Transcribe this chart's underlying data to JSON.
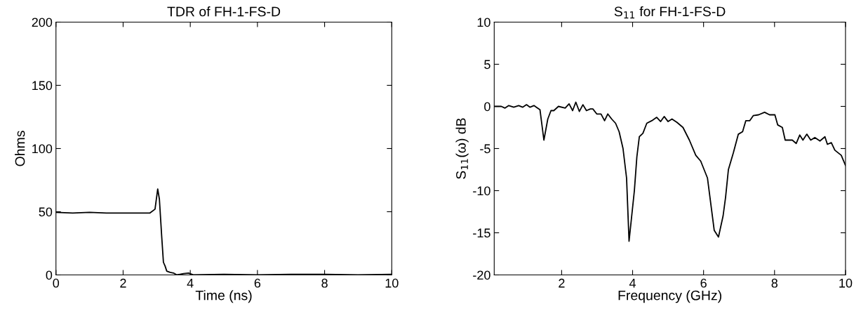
{
  "chart_data": [
    {
      "type": "line",
      "title": "TDR of FH-1-FS-D",
      "xlabel": "Time (ns)",
      "ylabel": "Ohms",
      "xlim": [
        0,
        10
      ],
      "xticks": [
        0,
        2,
        4,
        6,
        8,
        10
      ],
      "ylim": [
        0,
        200
      ],
      "yticks": [
        0,
        50,
        100,
        150,
        200
      ],
      "grid": false,
      "legend": false,
      "series": [
        {
          "color": "#000000",
          "x": [
            0,
            0.5,
            1,
            1.5,
            2,
            2.5,
            2.8,
            2.95,
            3.03,
            3.08,
            3.15,
            3.2,
            3.25,
            3.3,
            3.4,
            3.5,
            3.6,
            3.8,
            3.95,
            4.1,
            5,
            6,
            7,
            8,
            9,
            10
          ],
          "values": [
            49.5,
            49,
            49.5,
            49,
            49,
            49,
            49,
            52,
            68,
            60,
            30,
            10,
            7,
            3,
            2,
            1.5,
            0,
            1,
            1.5,
            0,
            0.5,
            0,
            0.5,
            0.5,
            0,
            0.5
          ]
        }
      ]
    },
    {
      "type": "line",
      "title": "S$_{11}$ for FH-1-FS-D",
      "xlabel": "Frequency (GHz)",
      "ylabel": "S$_{11}$(ω) dB",
      "xlim": [
        0.1,
        10
      ],
      "xticks": [
        2,
        4,
        6,
        8,
        10
      ],
      "ylim": [
        -20,
        10
      ],
      "yticks": [
        -20,
        -15,
        -10,
        -5,
        0,
        5,
        10
      ],
      "grid": false,
      "legend": false,
      "series": [
        {
          "color": "#000000",
          "x": [
            0.1,
            0.3,
            0.4,
            0.51,
            0.65,
            0.79,
            0.9,
            1.01,
            1.11,
            1.22,
            1.39,
            1.5,
            1.61,
            1.7,
            1.78,
            1.91,
            2.1,
            2.21,
            2.31,
            2.4,
            2.5,
            2.6,
            2.7,
            2.81,
            2.88,
            2.99,
            3.11,
            3.21,
            3.3,
            3.41,
            3.52,
            3.62,
            3.73,
            3.83,
            3.9,
            4.05,
            4.12,
            4.19,
            4.29,
            4.4,
            4.54,
            4.68,
            4.79,
            4.89,
            5.0,
            5.11,
            5.25,
            5.42,
            5.6,
            5.78,
            5.92,
            6.11,
            6.3,
            6.42,
            6.55,
            6.62,
            6.7,
            6.84,
            6.98,
            7.1,
            7.19,
            7.3,
            7.4,
            7.55,
            7.72,
            7.86,
            8.01,
            8.09,
            8.22,
            8.3,
            8.5,
            8.61,
            8.71,
            8.8,
            8.91,
            9.02,
            9.14,
            9.28,
            9.42,
            9.49,
            9.6,
            9.7,
            9.88,
            10.0
          ],
          "values": [
            0,
            0,
            -0.2,
            0.1,
            -0.1,
            0.1,
            -0.1,
            0.2,
            -0.1,
            0.1,
            -0.4,
            -4,
            -1.5,
            -0.5,
            -0.5,
            0,
            -0.2,
            0.3,
            -0.5,
            0.5,
            -0.6,
            0.2,
            -0.5,
            -0.3,
            -0.3,
            -0.9,
            -0.9,
            -1.7,
            -0.9,
            -1.5,
            -2,
            -3,
            -5,
            -8.5,
            -16,
            -10,
            -6,
            -3.6,
            -3.2,
            -2,
            -1.7,
            -1.3,
            -1.8,
            -1.2,
            -1.8,
            -1.5,
            -1.9,
            -2.5,
            -4,
            -5.8,
            -6.5,
            -8.5,
            -14.7,
            -15.5,
            -13,
            -10.8,
            -7.5,
            -5.5,
            -3.3,
            -3,
            -1.7,
            -1.7,
            -1.1,
            -1,
            -0.7,
            -1,
            -1,
            -2.2,
            -2.5,
            -4,
            -4,
            -4.4,
            -3.4,
            -4,
            -3.3,
            -4,
            -3.7,
            -4.1,
            -3.6,
            -4.5,
            -4.3,
            -5.2,
            -5.8,
            -7
          ]
        }
      ]
    }
  ]
}
